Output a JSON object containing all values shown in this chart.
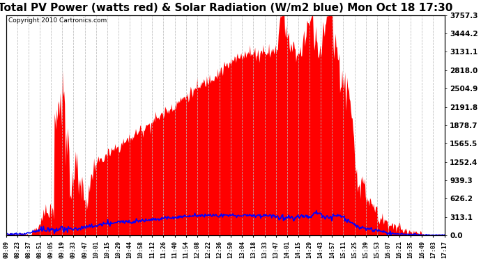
{
  "title": "Total PV Power (watts red) & Solar Radiation (W/m2 blue) Mon Oct 18 17:30",
  "copyright_text": "Copyright 2010 Cartronics.com",
  "y_right_ticks": [
    0.0,
    313.1,
    626.2,
    939.3,
    1252.4,
    1565.5,
    1878.7,
    2191.8,
    2504.9,
    2818.0,
    3131.1,
    3444.2,
    3757.3
  ],
  "ylim": [
    0,
    3757.3
  ],
  "x_labels": [
    "08:09",
    "08:23",
    "08:37",
    "08:51",
    "09:05",
    "09:19",
    "09:33",
    "09:47",
    "10:01",
    "10:15",
    "10:29",
    "10:44",
    "10:58",
    "11:12",
    "11:26",
    "11:40",
    "11:54",
    "12:08",
    "12:22",
    "12:36",
    "12:50",
    "13:04",
    "13:18",
    "13:33",
    "13:47",
    "14:01",
    "14:15",
    "14:29",
    "14:43",
    "14:57",
    "15:11",
    "15:25",
    "15:39",
    "15:53",
    "16:07",
    "16:21",
    "16:35",
    "16:49",
    "17:03",
    "17:17"
  ],
  "background_color": "#ffffff",
  "plot_bg_color": "#ffffff",
  "grid_color": "#aaaaaa",
  "title_fontsize": 11,
  "red_color": "#ff0000",
  "blue_color": "#0000ff"
}
